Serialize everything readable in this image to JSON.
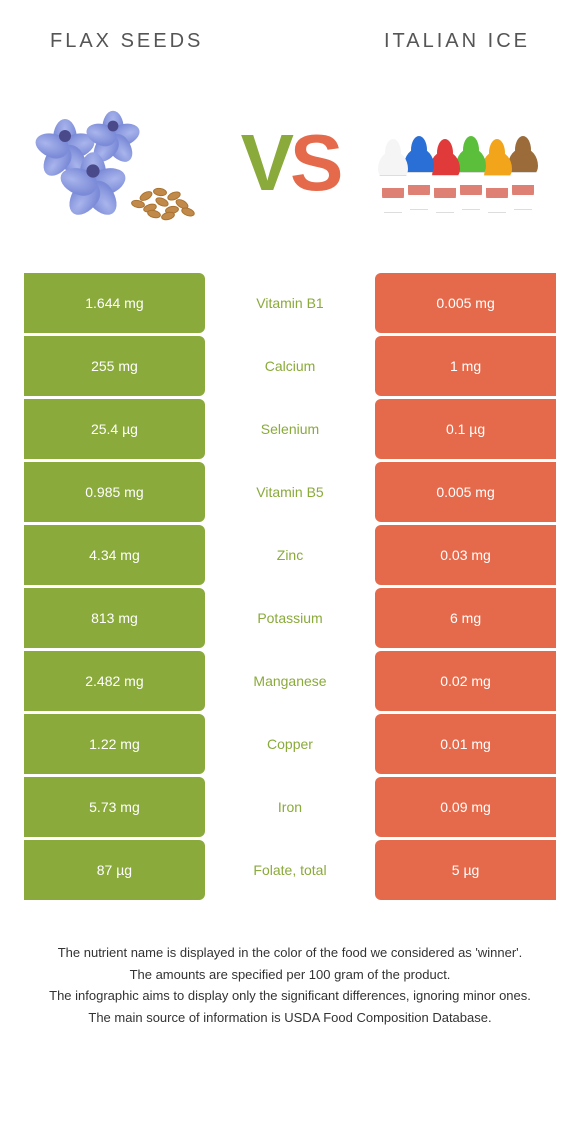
{
  "header": {
    "left_title": "FLAX SEEDS",
    "right_title": "ITALIAN ICE"
  },
  "vs": {
    "v": "V",
    "s": "S"
  },
  "colors": {
    "left_bg": "#8aaa3b",
    "right_bg": "#e56a4b",
    "text_white": "#ffffff",
    "winner_left": "#8aaa3b",
    "winner_right": "#e56a4b"
  },
  "ice_colors": [
    "#f5f5f5",
    "#2a6fd6",
    "#e03a3a",
    "#5bbf3c",
    "#f2a51a",
    "#9b6b3a"
  ],
  "rows": [
    {
      "left": "1.644 mg",
      "nutrient": "Vitamin B1",
      "right": "0.005 mg",
      "winner": "left"
    },
    {
      "left": "255 mg",
      "nutrient": "Calcium",
      "right": "1 mg",
      "winner": "left"
    },
    {
      "left": "25.4 µg",
      "nutrient": "Selenium",
      "right": "0.1 µg",
      "winner": "left"
    },
    {
      "left": "0.985 mg",
      "nutrient": "Vitamin B5",
      "right": "0.005 mg",
      "winner": "left"
    },
    {
      "left": "4.34 mg",
      "nutrient": "Zinc",
      "right": "0.03 mg",
      "winner": "left"
    },
    {
      "left": "813 mg",
      "nutrient": "Potassium",
      "right": "6 mg",
      "winner": "left"
    },
    {
      "left": "2.482 mg",
      "nutrient": "Manganese",
      "right": "0.02 mg",
      "winner": "left"
    },
    {
      "left": "1.22 mg",
      "nutrient": "Copper",
      "right": "0.01 mg",
      "winner": "left"
    },
    {
      "left": "5.73 mg",
      "nutrient": "Iron",
      "right": "0.09 mg",
      "winner": "left"
    },
    {
      "left": "87 µg",
      "nutrient": "Folate, total",
      "right": "5 µg",
      "winner": "left"
    }
  ],
  "footer": {
    "line1": "The nutrient name is displayed in the color of the food we considered as 'winner'.",
    "line2": "The amounts are specified per 100 gram of the product.",
    "line3": "The infographic aims to display only the significant differences, ignoring minor ones.",
    "line4": "The main source of information is USDA Food Composition Database."
  }
}
